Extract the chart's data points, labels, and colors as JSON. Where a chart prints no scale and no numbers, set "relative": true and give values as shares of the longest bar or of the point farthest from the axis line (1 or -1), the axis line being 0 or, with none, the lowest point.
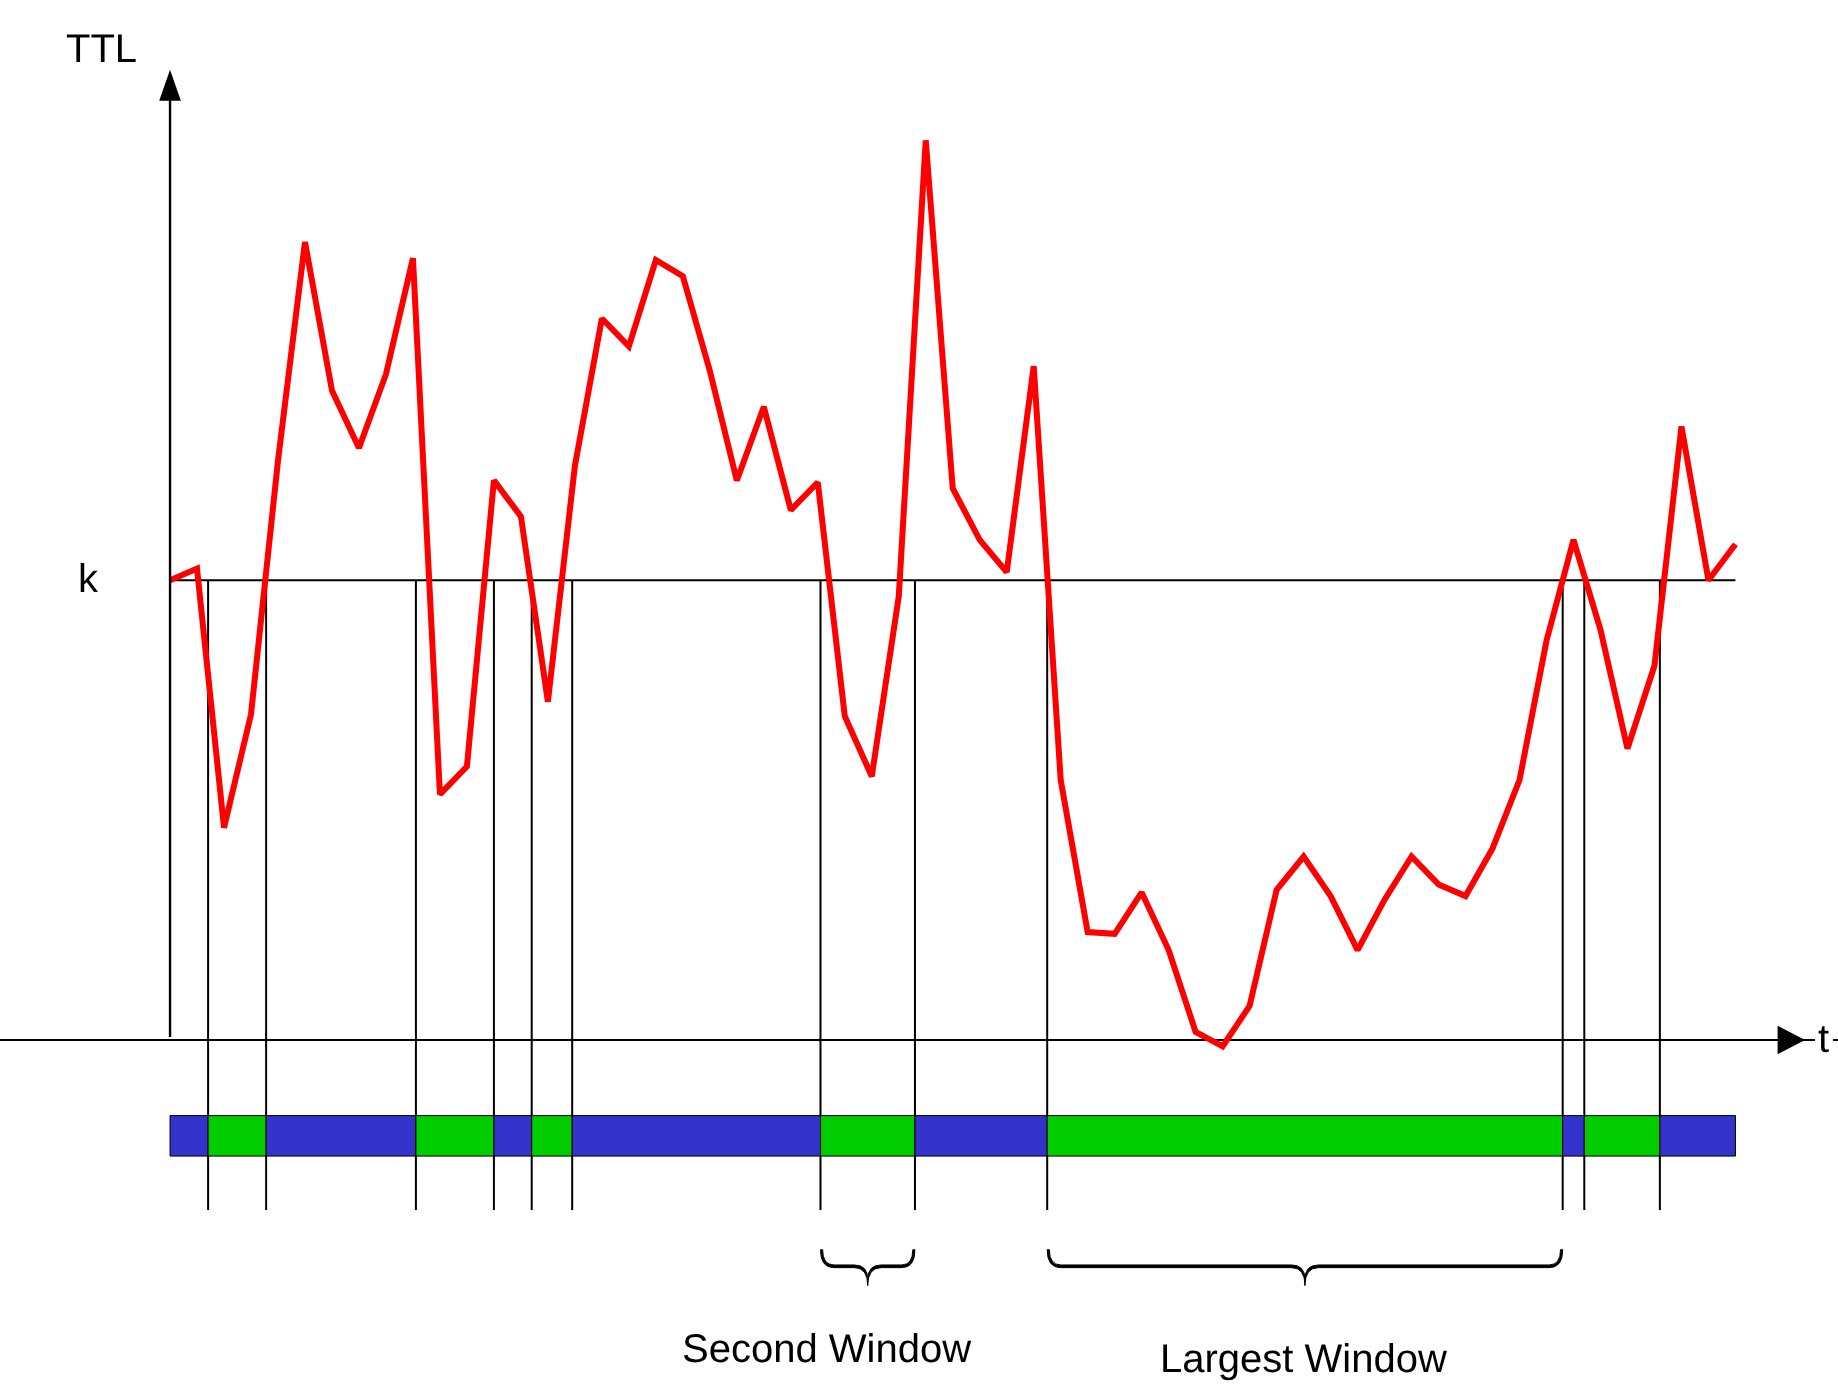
{
  "chart_data": {
    "type": "line",
    "relative": true,
    "xlabel": "t",
    "ylabel": "TTL",
    "grid": false,
    "marker": "none",
    "line_style": "solid",
    "categories": [
      null,
      null,
      null,
      null,
      null,
      null,
      null,
      null,
      null,
      null,
      null,
      null,
      null,
      null,
      null,
      null,
      null,
      null,
      null,
      null,
      null,
      null,
      null,
      null,
      null,
      null,
      null,
      null,
      null,
      null,
      null,
      null,
      null,
      null,
      null,
      null,
      null,
      null,
      null,
      null,
      null,
      null,
      null,
      null,
      null,
      null,
      null,
      null,
      null,
      null,
      null,
      null,
      null,
      null,
      null,
      null,
      null,
      null,
      null
    ],
    "series": [
      {
        "color": "#ff0000",
        "values": [
          0.511,
          0.524,
          0.236,
          0.362,
          0.644,
          0.887,
          0.722,
          0.658,
          0.74,
          0.869,
          0.273,
          0.304,
          0.622,
          0.582,
          0.376,
          0.638,
          0.802,
          0.771,
          0.867,
          0.849,
          0.744,
          0.622,
          0.704,
          0.589,
          0.62,
          0.36,
          0.293,
          0.493,
          1.0,
          0.613,
          0.556,
          0.52,
          0.749,
          0.289,
          0.12,
          0.118,
          0.164,
          0.1,
          0.009,
          -0.007,
          0.038,
          0.167,
          0.204,
          0.16,
          0.1,
          0.156,
          0.204,
          0.173,
          0.16,
          0.213,
          0.289,
          0.444,
          0.556,
          0.456,
          0.324,
          0.416,
          0.682,
          0.511,
          0.551
        ]
      }
    ],
    "ref_lines": [
      {
        "axis": "y",
        "value": 0.511,
        "label": "k",
        "color": "#000000"
      }
    ],
    "annotations": [
      "Second Window",
      "Largest Window"
    ]
  }
}
